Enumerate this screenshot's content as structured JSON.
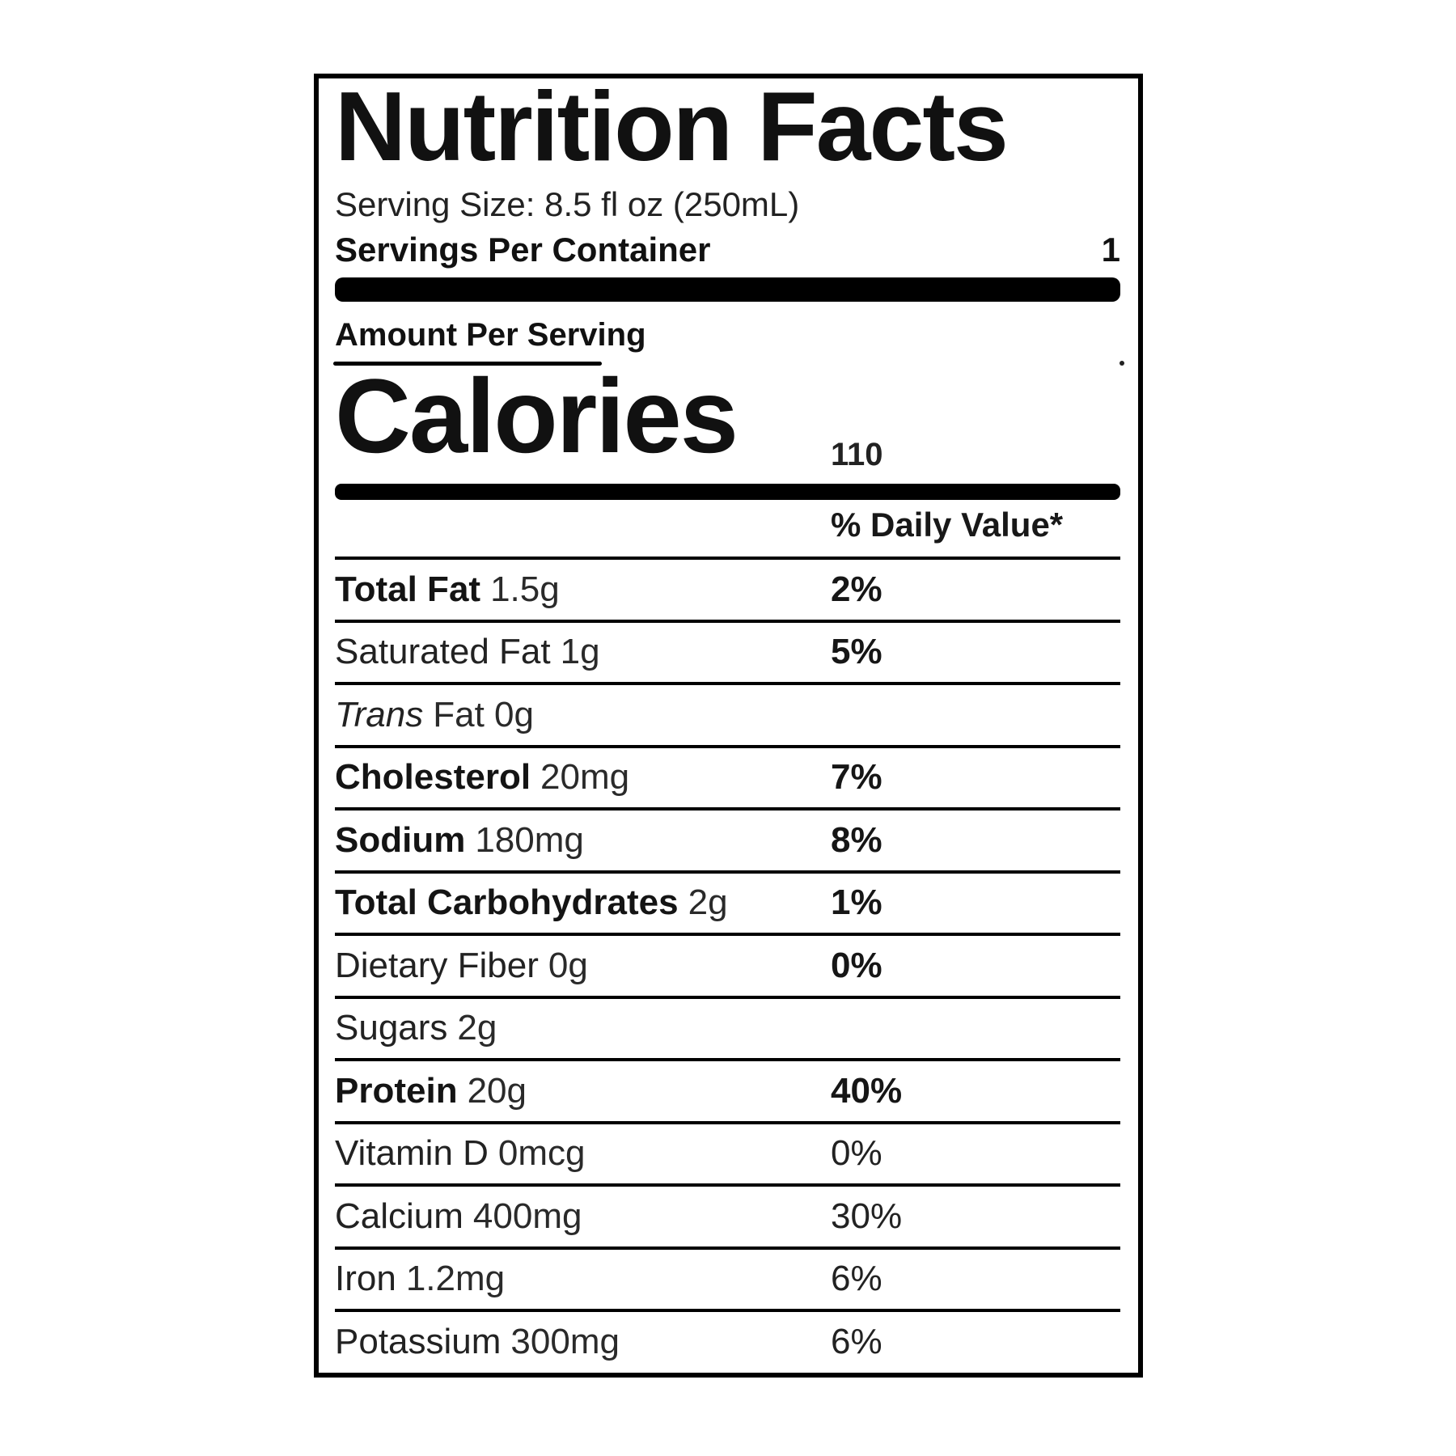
{
  "label": {
    "title": "Nutrition Facts",
    "serving_size": "Serving Size: 8.5 fl oz (250mL)",
    "servings_per_container": {
      "label": "Servings Per Container",
      "value": "1"
    },
    "amount_per_serving": "Amount Per Serving",
    "calories": {
      "label": "Calories",
      "value": "110"
    },
    "daily_value_header": "% Daily Value*",
    "nutrients": [
      {
        "name": "Total Fat",
        "name_style": "bold",
        "qty": "1.5g",
        "pct": "2%",
        "pct_style": "bold"
      },
      {
        "name": "Saturated Fat",
        "name_style": "normal",
        "qty": "1g",
        "pct": "5%",
        "pct_style": "bold"
      },
      {
        "name": "Trans",
        "name_style": "italic",
        "qty": "Fat 0g",
        "pct": "",
        "pct_style": "normal"
      },
      {
        "name": "Cholesterol",
        "name_style": "bold",
        "qty": "20mg",
        "pct": "7%",
        "pct_style": "bold"
      },
      {
        "name": "Sodium",
        "name_style": "bold",
        "qty": "180mg",
        "pct": "8%",
        "pct_style": "bold"
      },
      {
        "name": "Total Carbohydrates",
        "name_style": "bold",
        "qty": "2g",
        "pct": "1%",
        "pct_style": "bold"
      },
      {
        "name": "Dietary Fiber",
        "name_style": "normal",
        "qty": "0g",
        "pct": "0%",
        "pct_style": "bold"
      },
      {
        "name": "Sugars",
        "name_style": "normal",
        "qty": "2g",
        "pct": "",
        "pct_style": "normal"
      },
      {
        "name": "Protein",
        "name_style": "bold",
        "qty": "20g",
        "pct": "40%",
        "pct_style": "bold"
      },
      {
        "name": "Vitamin D",
        "name_style": "normal",
        "qty": "0mcg",
        "pct": "0%",
        "pct_style": "normal"
      },
      {
        "name": "Calcium",
        "name_style": "normal",
        "qty": "400mg",
        "pct": "30%",
        "pct_style": "normal"
      },
      {
        "name": "Iron",
        "name_style": "normal",
        "qty": "1.2mg",
        "pct": "6%",
        "pct_style": "normal"
      },
      {
        "name": "Potassium",
        "name_style": "normal",
        "qty": "300mg",
        "pct": "6%",
        "pct_style": "normal"
      }
    ],
    "colors": {
      "text": "#1b1b1b",
      "rule": "#000000",
      "background": "#ffffff"
    }
  }
}
